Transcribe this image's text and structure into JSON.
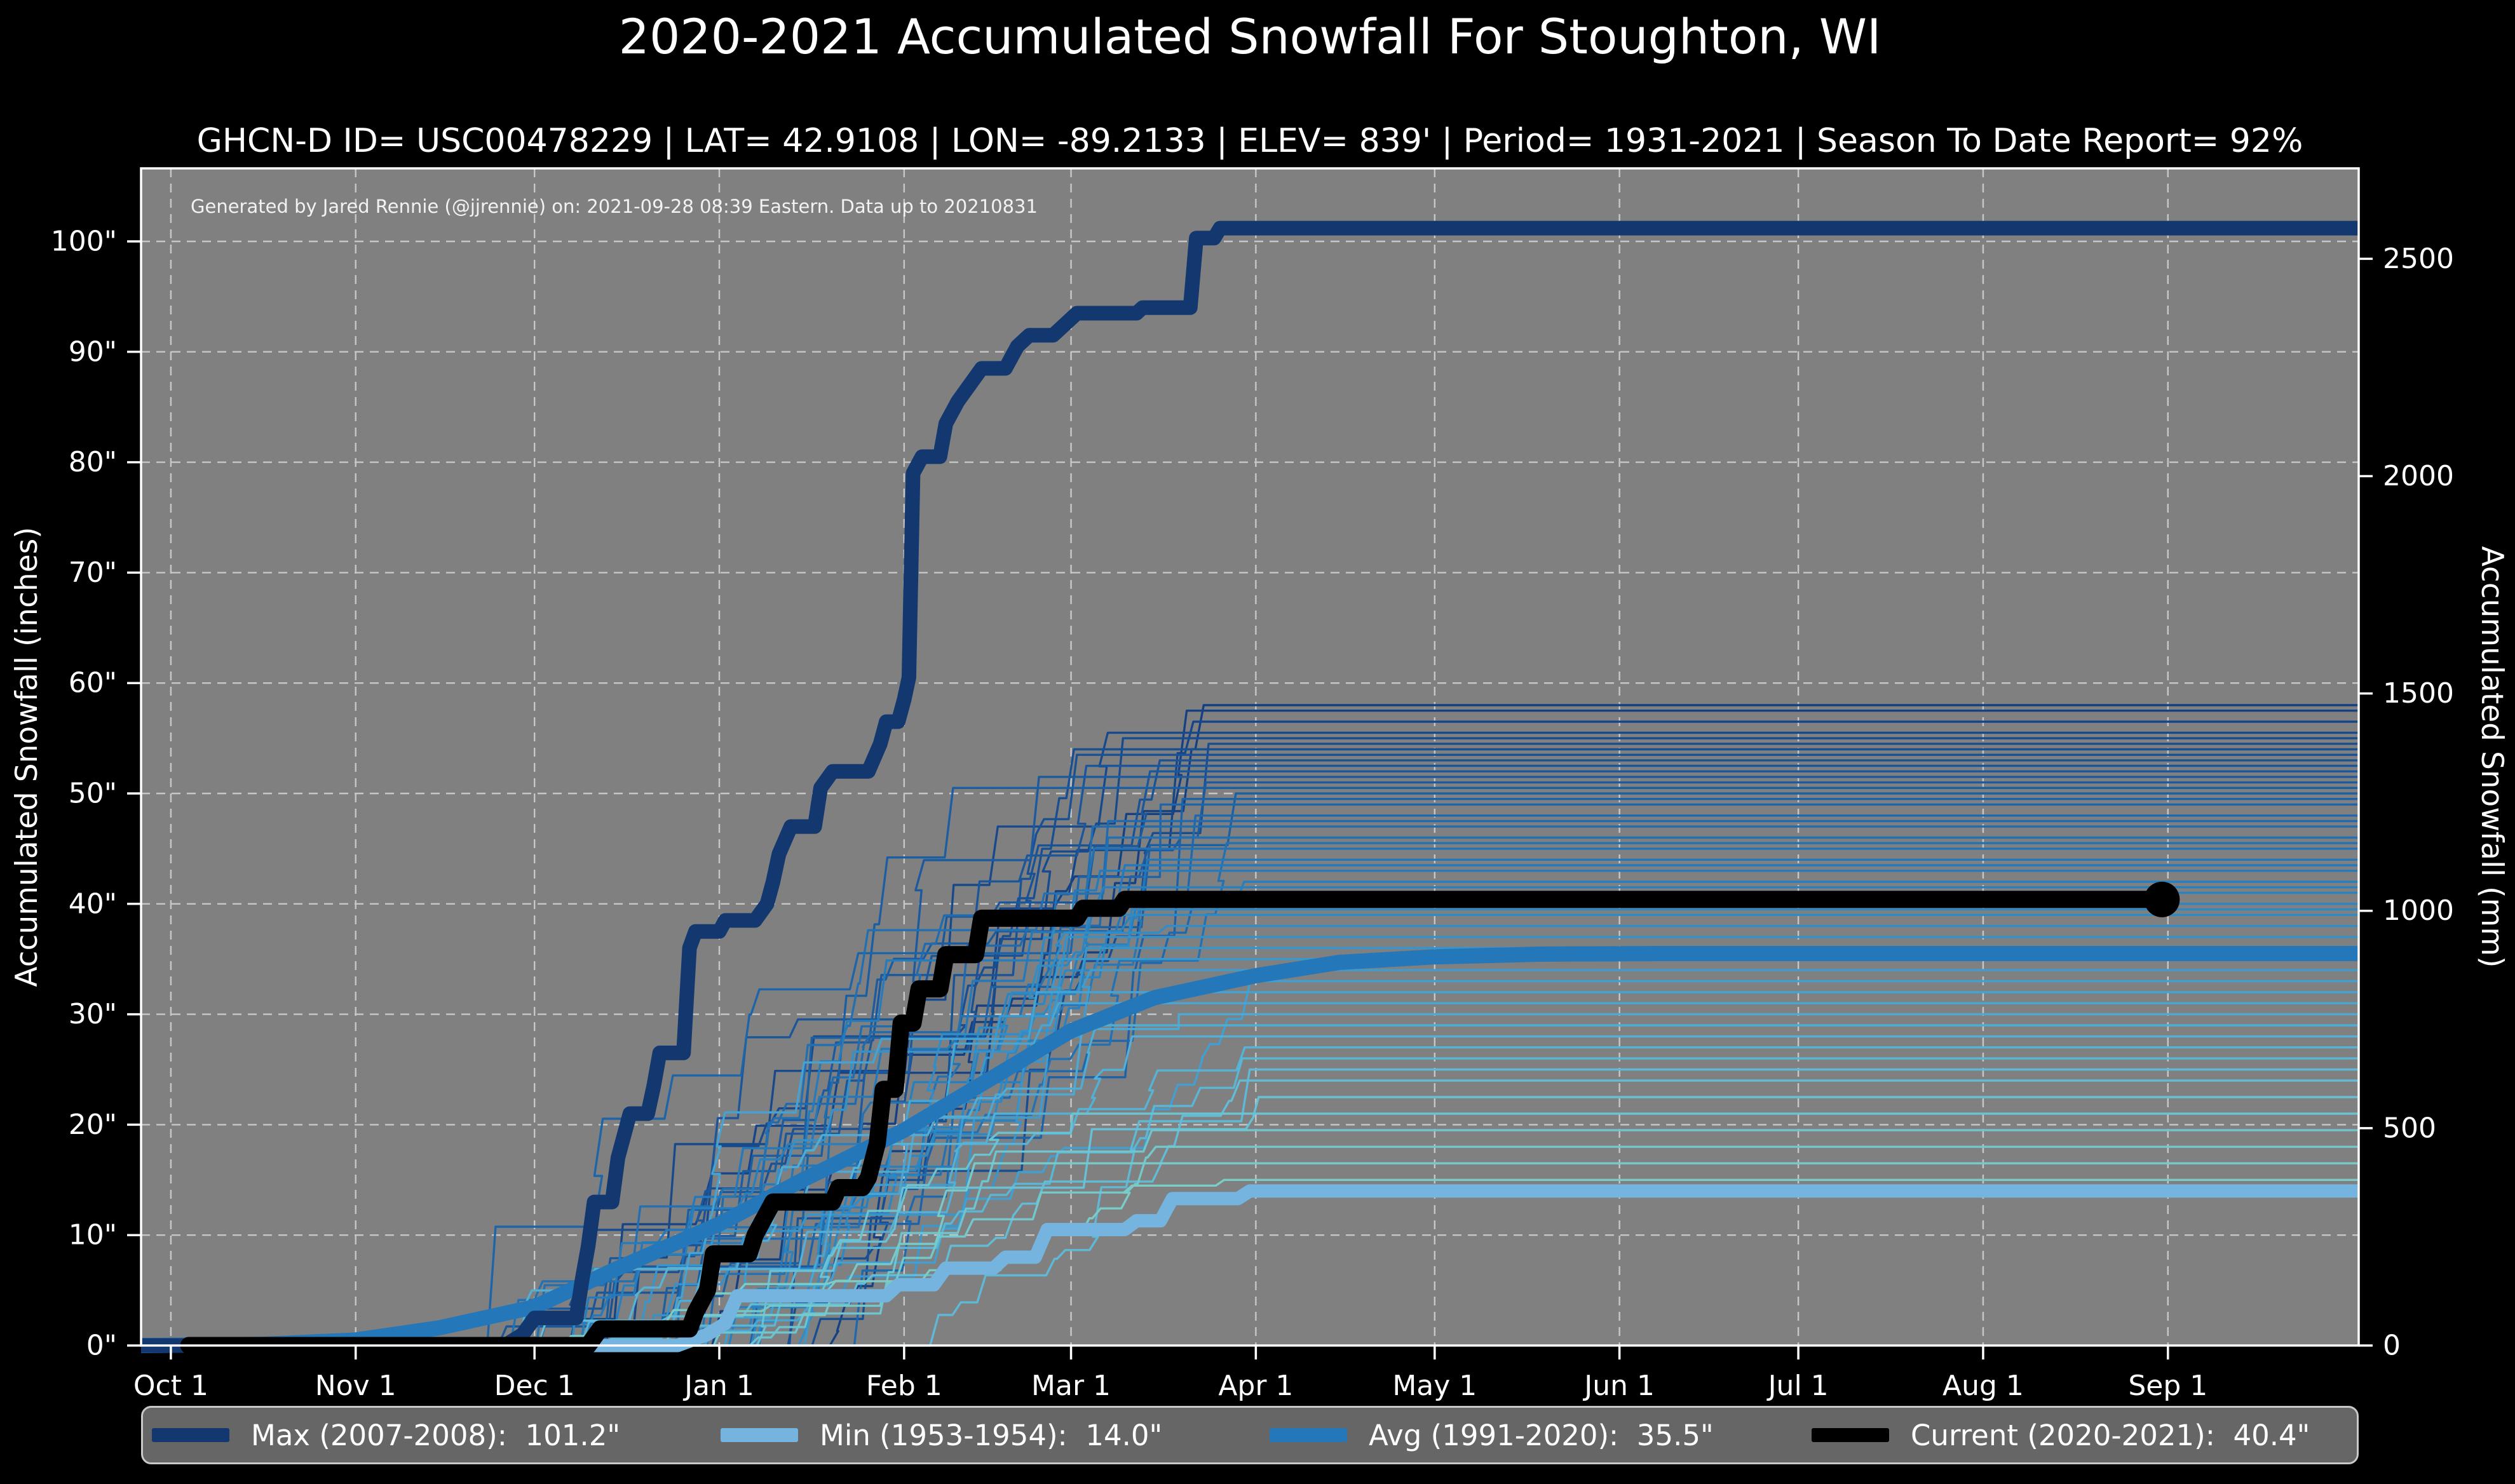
{
  "header": {
    "title": "2020-2021 Accumulated Snowfall For Stoughton, WI",
    "subtitle": "GHCN-D ID= USC00478229 | LAT= 42.9108 | LON= -89.2133 | ELEV= 839' | Period= 1931-2021 | Season To Date Report= 92%"
  },
  "annotation": "Generated by Jared Rennie (@jjrennie) on: 2021-09-28 08:39 Eastern. Data up to 20210831",
  "legend": {
    "items": [
      {
        "label": "Max (2007-2008):  101.2\"",
        "color": "#13386f"
      },
      {
        "label": "Min (1953-1954):  14.0\"",
        "color": "#74b4de"
      },
      {
        "label": "Avg (1991-2020):  35.5\"",
        "color": "#2477b9"
      },
      {
        "label": "Current (2020-2021):  40.4\"",
        "color": "#000000"
      }
    ]
  },
  "chart_data": {
    "type": "line",
    "title": "2020-2021 Accumulated Snowfall For Stoughton, WI",
    "x_axis": {
      "labels": [
        "Oct 1",
        "Nov 1",
        "Dec 1",
        "Jan 1",
        "Feb 1",
        "Mar 1",
        "Apr 1",
        "May 1",
        "Jun 1",
        "Jul 1",
        "Aug 1",
        "Sep 1"
      ],
      "month_days": [
        0,
        31,
        61,
        92,
        123,
        151,
        182,
        212,
        243,
        273,
        304,
        335
      ],
      "range_days": [
        -5,
        367
      ]
    },
    "y_left": {
      "label": "Accumulated Snowfall (inches)",
      "tick_values": [
        0,
        10,
        20,
        30,
        40,
        50,
        60,
        70,
        80,
        90,
        100
      ],
      "tick_labels": [
        "0\"",
        "10\"",
        "20\"",
        "30\"",
        "40\"",
        "50\"",
        "60\"",
        "70\"",
        "80\"",
        "90\"",
        "100\""
      ],
      "range": [
        0,
        106.6
      ]
    },
    "y_right": {
      "label": "Accumulated Snowfall (mm)",
      "tick_values_mm": [
        0,
        500,
        1000,
        1500,
        2000,
        2500
      ],
      "mm_per_inch": 25.4
    },
    "grid": {
      "on": true,
      "color": "#cfcfcf",
      "dash": [
        14,
        10
      ]
    },
    "plot_bg": "#808080",
    "page_bg": "#000000",
    "spine_color": "#ffffff",
    "series": [
      {
        "name": "Max (2007-2008)",
        "final_label": "101.2\"",
        "color": "#13386f",
        "width": 23,
        "points": [
          [
            -5,
            0
          ],
          [
            56,
            0
          ],
          [
            59,
            1
          ],
          [
            61,
            2.5
          ],
          [
            68,
            2.5
          ],
          [
            69,
            6
          ],
          [
            70,
            9
          ],
          [
            71,
            13
          ],
          [
            74,
            13
          ],
          [
            75,
            17
          ],
          [
            77,
            21
          ],
          [
            80,
            21
          ],
          [
            81,
            23.5
          ],
          [
            82,
            26.5
          ],
          [
            86,
            26.5
          ],
          [
            87,
            36
          ],
          [
            88,
            37.5
          ],
          [
            92,
            37.5
          ],
          [
            93,
            38.5
          ],
          [
            98,
            38.5
          ],
          [
            100,
            40
          ],
          [
            101,
            42
          ],
          [
            102,
            44.5
          ],
          [
            104,
            47
          ],
          [
            108,
            47
          ],
          [
            109,
            50.5
          ],
          [
            111,
            52
          ],
          [
            117,
            52
          ],
          [
            119,
            54.5
          ],
          [
            120,
            56.5
          ],
          [
            122,
            56.5
          ],
          [
            123,
            58.5
          ],
          [
            123.8,
            60.5
          ],
          [
            124.5,
            79
          ],
          [
            126,
            80.5
          ],
          [
            129,
            80.5
          ],
          [
            130,
            83.5
          ],
          [
            132,
            85.5
          ],
          [
            134,
            87
          ],
          [
            136,
            88.5
          ],
          [
            140,
            88.5
          ],
          [
            142,
            90.5
          ],
          [
            144,
            91.5
          ],
          [
            148,
            91.5
          ],
          [
            150,
            92.5
          ],
          [
            152,
            93.5
          ],
          [
            162,
            93.5
          ],
          [
            163,
            94
          ],
          [
            171,
            94
          ],
          [
            172,
            100.3
          ],
          [
            175,
            100.3
          ],
          [
            176,
            101.2
          ],
          [
            367,
            101.2
          ]
        ]
      },
      {
        "name": "Min (1953-1954)",
        "final_label": "14.0\"",
        "color": "#74b4de",
        "width": 21,
        "points": [
          [
            -5,
            0
          ],
          [
            85,
            0
          ],
          [
            90,
            1
          ],
          [
            93,
            2
          ],
          [
            95,
            4.5
          ],
          [
            120,
            4.5
          ],
          [
            122,
            5.5
          ],
          [
            128,
            5.5
          ],
          [
            130,
            7
          ],
          [
            138,
            7
          ],
          [
            140,
            8
          ],
          [
            145,
            8
          ],
          [
            147,
            10.5
          ],
          [
            160,
            10.5
          ],
          [
            162,
            11.3
          ],
          [
            166,
            11.3
          ],
          [
            168,
            13.3
          ],
          [
            179,
            13.3
          ],
          [
            181,
            14
          ],
          [
            367,
            14
          ]
        ]
      },
      {
        "name": "Avg (1991-2020)",
        "final_label": "35.5\"",
        "color": "#2477b9",
        "width": 24,
        "points": [
          [
            -5,
            0
          ],
          [
            15,
            0.1
          ],
          [
            31,
            0.5
          ],
          [
            45,
            1.6
          ],
          [
            61,
            3.5
          ],
          [
            75,
            7
          ],
          [
            92,
            11
          ],
          [
            106,
            15
          ],
          [
            123,
            19.5
          ],
          [
            137,
            24
          ],
          [
            151,
            28.5
          ],
          [
            165,
            31.5
          ],
          [
            182,
            33.5
          ],
          [
            196,
            34.7
          ],
          [
            212,
            35.2
          ],
          [
            230,
            35.45
          ],
          [
            250,
            35.5
          ],
          [
            367,
            35.5
          ]
        ]
      },
      {
        "name": "Current (2020-2021)",
        "final_label": "40.4\"",
        "color": "#000000",
        "width": 27,
        "end_dot": {
          "day": 334,
          "value": 40.4,
          "radius": 28
        },
        "points": [
          [
            3,
            0
          ],
          [
            70,
            0
          ],
          [
            72,
            1.5
          ],
          [
            87,
            1.5
          ],
          [
            88,
            3
          ],
          [
            90,
            5
          ],
          [
            91,
            8.3
          ],
          [
            97,
            8.3
          ],
          [
            98,
            10
          ],
          [
            101,
            13
          ],
          [
            111,
            13
          ],
          [
            112,
            14.3
          ],
          [
            116,
            14.3
          ],
          [
            117,
            15.2
          ],
          [
            118.5,
            18.3
          ],
          [
            119.5,
            23.2
          ],
          [
            121.5,
            23.2
          ],
          [
            122.5,
            29.2
          ],
          [
            124.5,
            29.2
          ],
          [
            125.5,
            32.3
          ],
          [
            129,
            32.3
          ],
          [
            130,
            35.4
          ],
          [
            135,
            35.4
          ],
          [
            136,
            38.7
          ],
          [
            152,
            38.7
          ],
          [
            153,
            39.6
          ],
          [
            159,
            39.6
          ],
          [
            160,
            40.4
          ],
          [
            334,
            40.4
          ]
        ]
      }
    ],
    "historical_lines": {
      "description": "Thin background lines: one accumulated-snowfall trace per season 1931-2021, colored light teal (low totals) to dark navy (high totals)",
      "color_stops": [
        "#7ecec4",
        "#66c0d6",
        "#45a4d4",
        "#2a85c2",
        "#1d63a8",
        "#143f80"
      ],
      "final_range": [
        14,
        58
      ],
      "width": 3.4,
      "finals": [
        58,
        57.5,
        56.5,
        55.5,
        55,
        54.5,
        54,
        53.5,
        53,
        52.5,
        52,
        51.5,
        51,
        50.5,
        50,
        49.5,
        49,
        48,
        47.5,
        47,
        46,
        45.5,
        45,
        44,
        43.5,
        43,
        42,
        41.5,
        41,
        40,
        39.5,
        39,
        38,
        37,
        36,
        35,
        34,
        33,
        32,
        31,
        30,
        29,
        28,
        27,
        26,
        25,
        24,
        22.5,
        21,
        19.5,
        18,
        16.5,
        15
      ]
    }
  }
}
